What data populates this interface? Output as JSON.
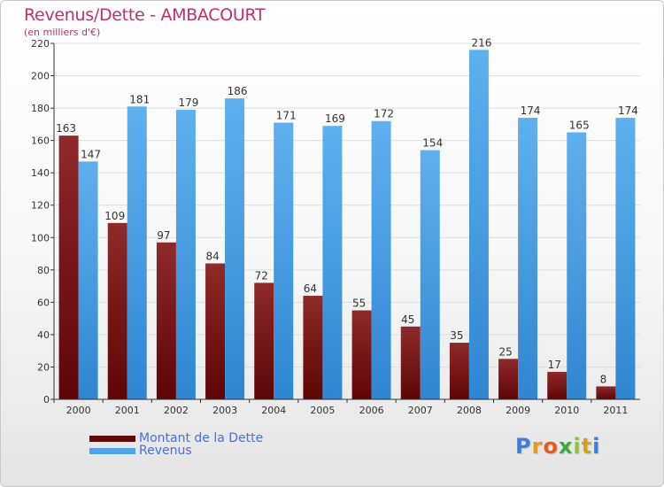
{
  "title": "Revenus/Dette - AMBACOURT",
  "subtitle": "(en milliers d'€)",
  "colors": {
    "dette": "#7a1616",
    "revenus": "#4da3e6",
    "title": "#c0306a",
    "legend_text": "#4a6fe0",
    "axis": "#333333",
    "grid": "#dddddd"
  },
  "legend": [
    {
      "label": "Montant de la Dette",
      "color": "#5e0a0a"
    },
    {
      "label": "Revenus",
      "color": "#4da3e6"
    }
  ],
  "logo": {
    "text": "Proxiti"
  },
  "chart_data": {
    "type": "bar",
    "title": "Revenus/Dette - AMBACOURT",
    "subtitle": "(en milliers d'€)",
    "categories": [
      "2000",
      "2001",
      "2002",
      "2003",
      "2004",
      "2005",
      "2006",
      "2007",
      "2008",
      "2009",
      "2010",
      "2011"
    ],
    "series": [
      {
        "name": "Montant de la Dette",
        "values": [
          163,
          109,
          97,
          84,
          72,
          64,
          55,
          45,
          35,
          25,
          17,
          8
        ]
      },
      {
        "name": "Revenus",
        "values": [
          147,
          181,
          179,
          186,
          171,
          169,
          172,
          154,
          216,
          174,
          165,
          174
        ]
      }
    ],
    "ylim": [
      0,
      220
    ],
    "yticks": [
      0,
      20,
      40,
      60,
      80,
      100,
      120,
      140,
      160,
      180,
      200,
      220
    ],
    "grid": true,
    "legend_position": "bottom-left",
    "data_labels": true
  }
}
